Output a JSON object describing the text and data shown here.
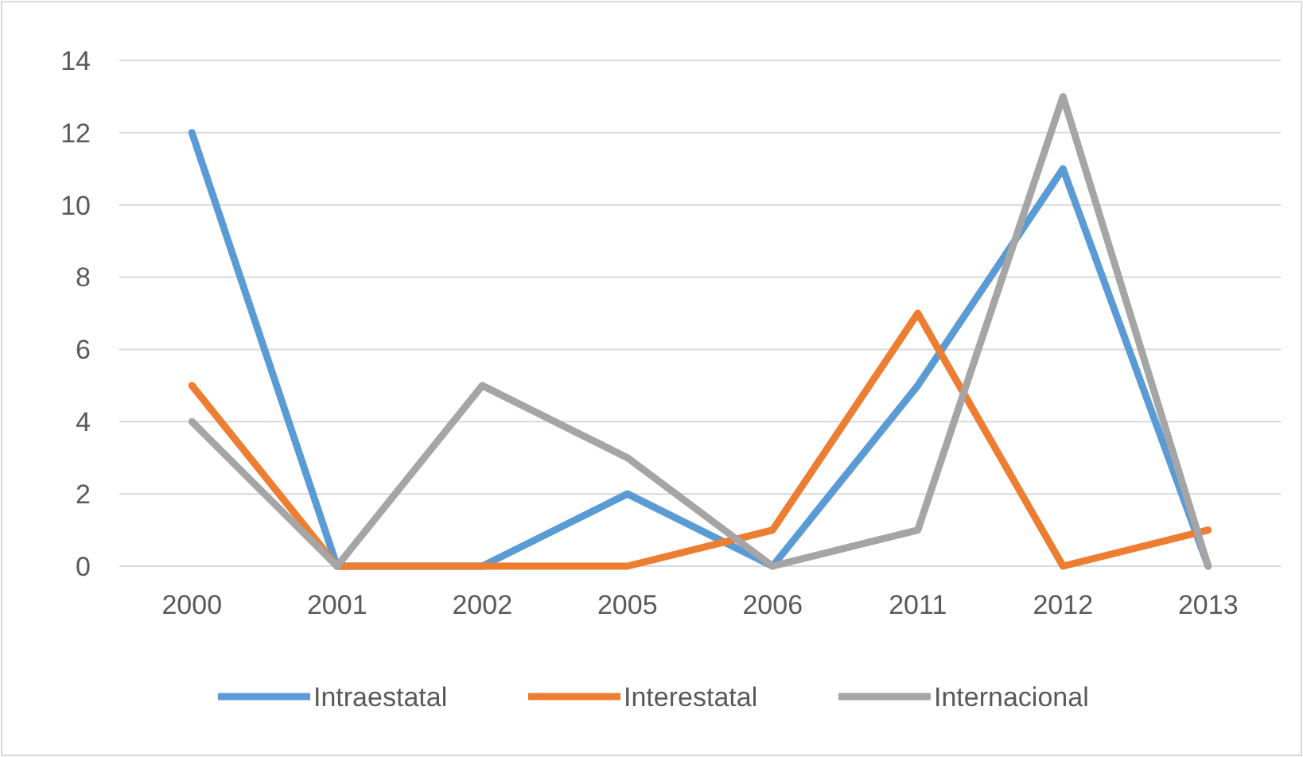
{
  "chart_data": {
    "type": "line",
    "categories": [
      "2000",
      "2001",
      "2002",
      "2005",
      "2006",
      "2011",
      "2012",
      "2013"
    ],
    "series": [
      {
        "name": "Intraestatal",
        "color": "#5b9bd5",
        "values": [
          12,
          0,
          0,
          2,
          0,
          5,
          11,
          0
        ]
      },
      {
        "name": "Interestatal",
        "color": "#ed7d31",
        "values": [
          5,
          0,
          0,
          0,
          1,
          7,
          0,
          1
        ]
      },
      {
        "name": "Internacional",
        "color": "#a5a5a5",
        "values": [
          4,
          0,
          5,
          3,
          0,
          1,
          13,
          0
        ]
      }
    ],
    "ylim": [
      0,
      14
    ],
    "yticks": [
      0,
      2,
      4,
      6,
      8,
      10,
      12,
      14
    ],
    "grid": "y",
    "legend": "bottom",
    "marker": "none",
    "line_style": "solid"
  }
}
